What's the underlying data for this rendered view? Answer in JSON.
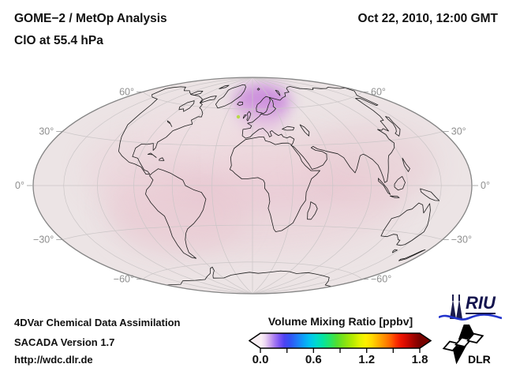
{
  "header": {
    "title_line1": "GOME−2 / MetOp Analysis",
    "title_line2": "ClO at 55.4 hPa",
    "datetime": "Oct 22, 2010, 12:00 GMT"
  },
  "map": {
    "lat_labels_left": [
      "60°",
      "30°",
      "0°",
      "−30°",
      "−60°"
    ],
    "lat_labels_right": [
      "60°",
      "30°",
      "0°",
      "−30°",
      "−60°"
    ],
    "grid_interval_deg": 30
  },
  "colorbar": {
    "title": "Volume Mixing Ratio [ppbv]",
    "tick_labels": [
      "0.0",
      "0.6",
      "1.2",
      "1.8"
    ],
    "min": 0.0,
    "max": 1.8
  },
  "footer": {
    "line1": "4DVar Chemical Data Assimilation",
    "line2": "SACADA Version 1.7",
    "line3": "http://wdc.dlr.de"
  },
  "logos": {
    "riu_text": "RIU",
    "dlr_text": "DLR"
  },
  "colors": {
    "map_base": "#ece4e5",
    "clo_maximum_violet": "#c57adb",
    "background": "#ffffff"
  },
  "chart_data": {
    "type": "heatmap",
    "title": "GOME−2 / MetOp Analysis — ClO at 55.4 hPa",
    "datetime": "Oct 22, 2010, 12:00 GMT",
    "projection": "Hammer elliptical world map, graticule every 30°",
    "colorbar": {
      "label": "Volume Mixing Ratio [ppbv]",
      "min": 0.0,
      "max": 1.8,
      "major_ticks": [
        0.0,
        0.6,
        1.2,
        1.8
      ],
      "minor_ticks": [
        0.3,
        0.9,
        1.5
      ],
      "extend_arrows": "both"
    },
    "lat_gridline_labels_deg": [
      60,
      30,
      0,
      -30,
      -60
    ],
    "features": [
      {
        "region": "Norwegian Sea / Scandinavia (~55–75N, 10W–30E)",
        "approx_value_ppbv": 0.12,
        "appearance": "violet maximum"
      },
      {
        "region": "equatorial Africa / tropical band",
        "approx_value_ppbv": 0.06,
        "appearance": "light pink enhancement"
      },
      {
        "region": "mid-latitude patches (Asia, South Atlantic, North America)",
        "approx_value_ppbv": 0.04,
        "appearance": "very pale pink"
      },
      {
        "region": "global background",
        "approx_value_ppbv": 0.02,
        "appearance": "near-white"
      }
    ]
  }
}
